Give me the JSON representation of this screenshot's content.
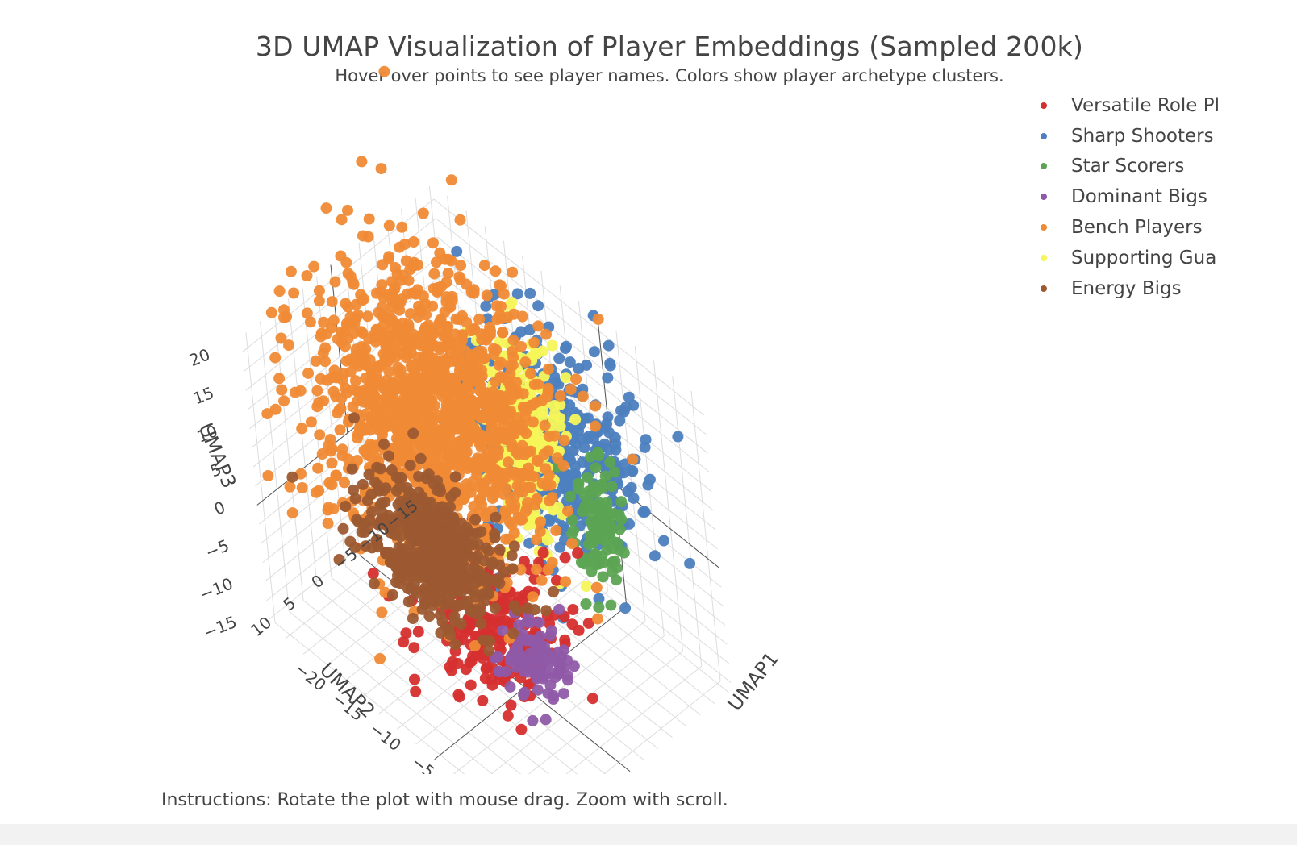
{
  "chart_data": {
    "type": "scatter",
    "title": "3D UMAP Visualization of Player Embeddings (Sampled 200k)",
    "subtitle": "Hover over points to see player names. Colors show player archetype clusters.",
    "xlabel": "UMAP1",
    "ylabel": "UMAP2",
    "zlabel": "UMAP3",
    "x_ticks": [
      "−20",
      "−15",
      "−10",
      "−5",
      "0",
      "5",
      "10"
    ],
    "y_ticks": [
      "−15",
      "−10",
      "−5",
      "0",
      "5",
      "10"
    ],
    "z_ticks": [
      "20",
      "15",
      "10",
      "5",
      "0",
      "−5",
      "−10",
      "−15"
    ],
    "xlim": [
      -22,
      14
    ],
    "ylim": [
      -18,
      16
    ],
    "zlim": [
      -16,
      22
    ],
    "grid": true,
    "legend_position": "top-right",
    "series": [
      {
        "name": "Versatile Role Pl",
        "color": "#d62f2f",
        "center": [
          -2,
          2,
          -8
        ],
        "spread": [
          4,
          4,
          4
        ]
      },
      {
        "name": "Sharp Shooters",
        "color": "#4c7fbf",
        "center": [
          0,
          -9,
          10
        ],
        "spread": [
          5,
          4,
          6
        ]
      },
      {
        "name": "Star Scorers",
        "color": "#5ca453",
        "center": [
          4,
          -10,
          2
        ],
        "spread": [
          1.5,
          1.5,
          4
        ]
      },
      {
        "name": "Dominant Bigs",
        "color": "#8f5aa8",
        "center": [
          2,
          0,
          -11
        ],
        "spread": [
          2,
          2,
          2
        ]
      },
      {
        "name": "Bench Players",
        "color": "#f08a35",
        "center": [
          -12,
          -3,
          8
        ],
        "spread": [
          6,
          6,
          8
        ]
      },
      {
        "name": "Supporting Gua",
        "color": "#f6f55a",
        "center": [
          -2,
          -6,
          12
        ],
        "spread": [
          2,
          2,
          6
        ]
      },
      {
        "name": "Energy Bigs",
        "color": "#9c5a31",
        "center": [
          -8,
          4,
          -2
        ],
        "spread": [
          4,
          3,
          3
        ]
      }
    ]
  },
  "instructions": "Instructions: Rotate the plot with mouse drag. Zoom with scroll."
}
